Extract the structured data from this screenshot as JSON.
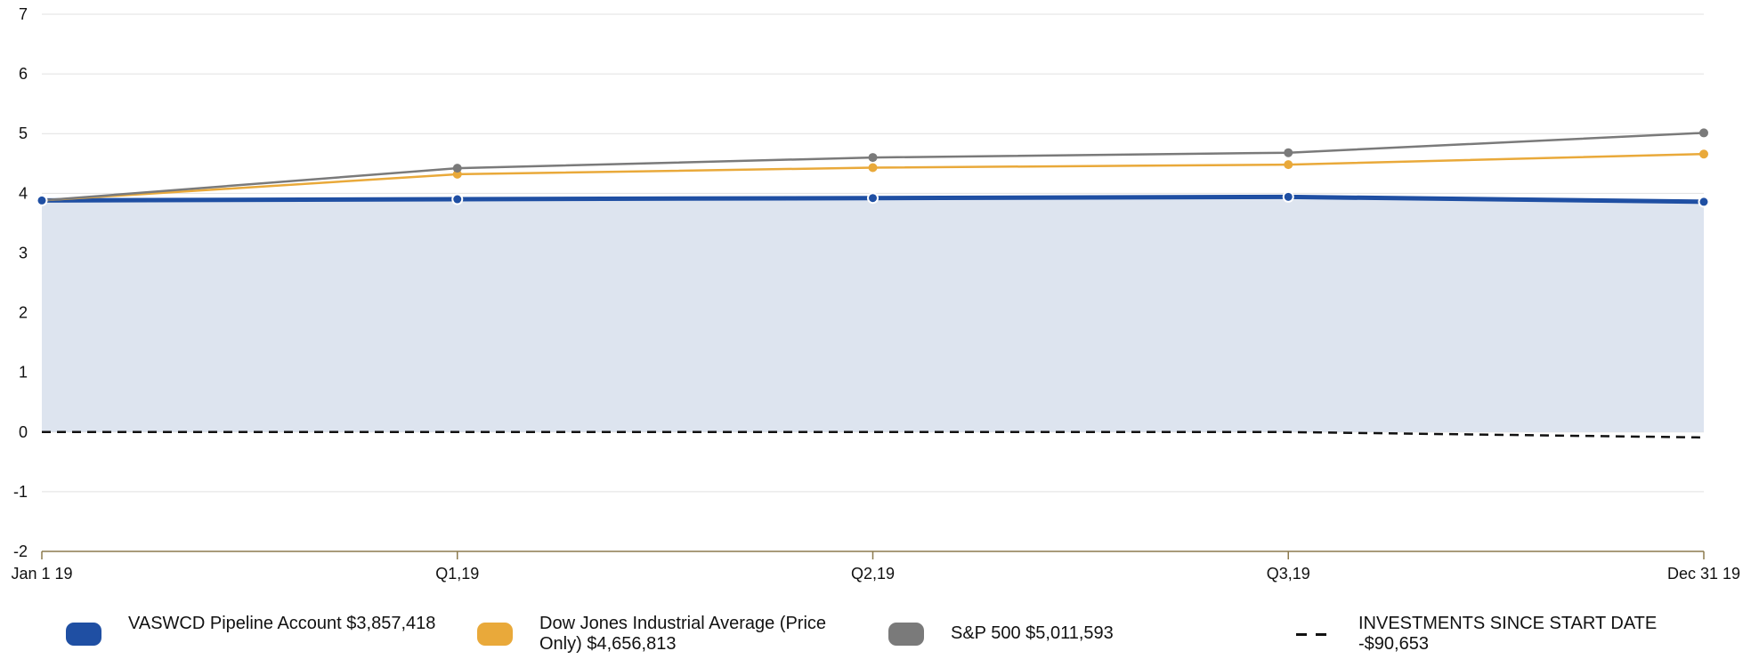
{
  "chart_data": {
    "type": "line",
    "title": "",
    "xlabel": "",
    "ylabel": "",
    "categories": [
      "Jan 1 19",
      "Q1,19",
      "Q2,19",
      "Q3,19",
      "Dec 31 19"
    ],
    "ylim": [
      -2,
      7
    ],
    "yticks": [
      7,
      6,
      5,
      4,
      3,
      2,
      1,
      0,
      -1,
      -2
    ],
    "grid": true,
    "legend_position": "bottom",
    "series": [
      {
        "name": "VASWCD Pipeline Account $3,857,418",
        "values": [
          3.88,
          3.9,
          3.92,
          3.94,
          3.857
        ],
        "color": "#1f4fa3",
        "style": "area"
      },
      {
        "name": "Dow Jones Industrial Average (Price Only) $4,656,813",
        "values": [
          3.88,
          4.32,
          4.43,
          4.48,
          4.657
        ],
        "color": "#e9a93a",
        "style": "line"
      },
      {
        "name": "S&P 500 $5,011,593",
        "values": [
          3.88,
          4.42,
          4.6,
          4.68,
          5.012
        ],
        "color": "#7a7a7a",
        "style": "line"
      },
      {
        "name": "INVESTMENTS SINCE START DATE -$90,653",
        "values": [
          0,
          0,
          0,
          0,
          -0.091
        ],
        "color": "#111111",
        "style": "dashed"
      }
    ]
  }
}
